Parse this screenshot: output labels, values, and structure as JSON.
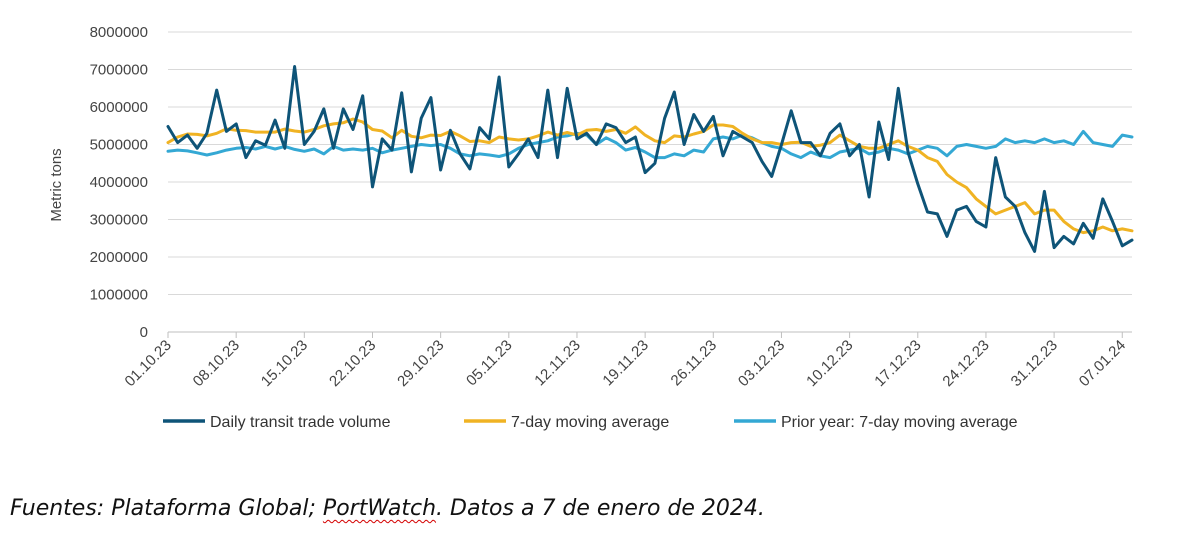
{
  "chart_data": {
    "type": "line",
    "title": "",
    "xlabel": "",
    "ylabel": "Metric tons",
    "ylim": [
      0,
      8000000
    ],
    "yticks": [
      "0",
      "1000000",
      "2000000",
      "3000000",
      "4000000",
      "5000000",
      "6000000",
      "7000000",
      "8000000"
    ],
    "yticks_values": [
      0,
      1000000,
      2000000,
      3000000,
      4000000,
      5000000,
      6000000,
      7000000,
      8000000
    ],
    "grid": true,
    "start_date": "01.10.23",
    "xtick_labels": [
      "01.10.23",
      "08.10.23",
      "15.10.23",
      "22.10.23",
      "29.10.23",
      "05.11.23",
      "12.11.23",
      "19.11.23",
      "26.11.23",
      "03.12.23",
      "10.12.23",
      "17.12.23",
      "24.12.23",
      "31.12.23",
      "07.01.24"
    ],
    "xtick_day_index": [
      0,
      7,
      14,
      21,
      28,
      35,
      42,
      49,
      56,
      63,
      70,
      77,
      84,
      91,
      98
    ],
    "legend_position": "bottom",
    "series": [
      {
        "name": "Daily transit trade volume",
        "color": "#0e5478",
        "values": [
          5480000,
          5050000,
          5250000,
          4900000,
          5300000,
          6450000,
          5350000,
          5550000,
          4650000,
          5100000,
          4980000,
          5650000,
          4900000,
          7080000,
          5000000,
          5350000,
          5950000,
          4900000,
          5950000,
          5400000,
          6300000,
          3870000,
          5150000,
          4850000,
          6380000,
          4270000,
          5700000,
          6250000,
          4320000,
          5380000,
          4750000,
          4350000,
          5450000,
          5150000,
          6800000,
          4400000,
          4750000,
          5150000,
          4650000,
          6450000,
          4650000,
          6500000,
          5150000,
          5300000,
          5000000,
          5550000,
          5450000,
          5050000,
          5200000,
          4250000,
          4500000,
          5700000,
          6400000,
          5000000,
          5800000,
          5350000,
          5750000,
          4700000,
          5350000,
          5200000,
          5050000,
          4550000,
          4150000,
          5000000,
          5900000,
          5050000,
          5050000,
          4700000,
          5300000,
          5550000,
          4700000,
          5000000,
          3600000,
          5600000,
          4600000,
          6500000,
          4800000,
          3950000,
          3200000,
          3150000,
          2550000,
          3250000,
          3350000,
          2950000,
          2800000,
          4650000,
          3600000,
          3350000,
          2650000,
          2150000,
          3750000,
          2250000,
          2550000,
          2350000,
          2900000,
          2500000,
          3550000,
          2950000,
          2300000,
          2450000
        ]
      },
      {
        "name": "7-day moving average",
        "color": "#f0b323",
        "values": [
          5050000,
          5200000,
          5280000,
          5270000,
          5230000,
          5300000,
          5420000,
          5380000,
          5370000,
          5330000,
          5330000,
          5330000,
          5410000,
          5360000,
          5330000,
          5400000,
          5500000,
          5550000,
          5580000,
          5680000,
          5600000,
          5400000,
          5360000,
          5180000,
          5380000,
          5220000,
          5180000,
          5250000,
          5240000,
          5350000,
          5230000,
          5080000,
          5100000,
          5050000,
          5200000,
          5150000,
          5120000,
          5150000,
          5230000,
          5330000,
          5250000,
          5320000,
          5250000,
          5380000,
          5400000,
          5350000,
          5400000,
          5300000,
          5470000,
          5250000,
          5100000,
          5050000,
          5230000,
          5200000,
          5280000,
          5350000,
          5520000,
          5520000,
          5480000,
          5300000,
          5150000,
          5050000,
          5050000,
          5000000,
          5050000,
          5060000,
          4950000,
          4980000,
          5050000,
          5250000,
          5100000,
          4950000,
          4900000,
          4900000,
          5000000,
          5100000,
          4950000,
          4850000,
          4650000,
          4550000,
          4200000,
          4000000,
          3850000,
          3550000,
          3350000,
          3150000,
          3250000,
          3350000,
          3450000,
          3150000,
          3250000,
          3250000,
          2950000,
          2750000,
          2650000,
          2700000,
          2800000,
          2700000,
          2750000,
          2700000
        ]
      },
      {
        "name": "Prior year: 7-day moving average",
        "color": "#34a8d4",
        "values": [
          4820000,
          4850000,
          4830000,
          4780000,
          4720000,
          4780000,
          4850000,
          4900000,
          4920000,
          4880000,
          4950000,
          4880000,
          4950000,
          4870000,
          4820000,
          4880000,
          4750000,
          4950000,
          4850000,
          4880000,
          4850000,
          4900000,
          4780000,
          4850000,
          4900000,
          4950000,
          5000000,
          4970000,
          5000000,
          4900000,
          4750000,
          4700000,
          4750000,
          4720000,
          4680000,
          4750000,
          4900000,
          5000000,
          5050000,
          5100000,
          5200000,
          5230000,
          5300000,
          5250000,
          5000000,
          5180000,
          5050000,
          4850000,
          4920000,
          4800000,
          4650000,
          4650000,
          4750000,
          4700000,
          4850000,
          4800000,
          5150000,
          5200000,
          5150000,
          5250000,
          5180000,
          5050000,
          4950000,
          4900000,
          4750000,
          4650000,
          4800000,
          4700000,
          4650000,
          4800000,
          4850000,
          4900000,
          4750000,
          4800000,
          4900000,
          4850000,
          4750000,
          4850000,
          4950000,
          4900000,
          4700000,
          4950000,
          5000000,
          4950000,
          4900000,
          4950000,
          5150000,
          5050000,
          5100000,
          5050000,
          5150000,
          5050000,
          5100000,
          5000000,
          5350000,
          5050000,
          5000000,
          4950000,
          5250000,
          5200000
        ]
      }
    ]
  },
  "source": {
    "prefix": "Fuentes: Plataforma Global; ",
    "underlined": "PortWatch",
    "suffix": ". Datos a 7 de enero de 2024."
  }
}
